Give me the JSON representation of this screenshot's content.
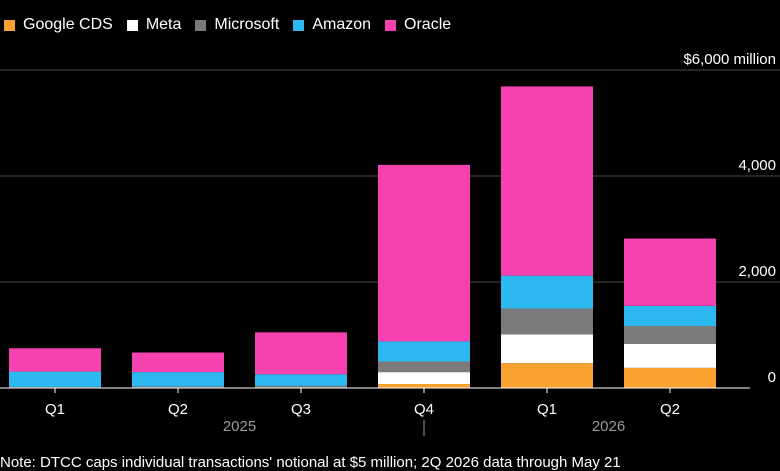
{
  "legend": {
    "items": [
      {
        "name": "Google CDS",
        "color": "#f9a12e"
      },
      {
        "name": "Meta",
        "color": "#ffffff"
      },
      {
        "name": "Microsoft",
        "color": "#7a7a7a"
      },
      {
        "name": "Amazon",
        "color": "#2db8f0"
      },
      {
        "name": "Oracle",
        "color": "#f542b0"
      }
    ]
  },
  "note": "Note: DTCC caps individual transactions' notional at $5 million; 2Q 2026 data through May 21",
  "chart_data": {
    "type": "bar",
    "stacked": true,
    "categories": [
      "Q1",
      "Q2",
      "Q3",
      "Q4",
      "Q1",
      "Q2"
    ],
    "year_groups": [
      {
        "label": "2025",
        "start": 0,
        "end": 3
      },
      {
        "label": "2026",
        "start": 4,
        "end": 5
      }
    ],
    "series": [
      {
        "name": "Google CDS",
        "color": "#f9a12e",
        "values": [
          0,
          0,
          0,
          75,
          470,
          380
        ]
      },
      {
        "name": "Meta",
        "color": "#ffffff",
        "values": [
          0,
          0,
          0,
          225,
          540,
          450
        ]
      },
      {
        "name": "Microsoft",
        "color": "#7a7a7a",
        "values": [
          20,
          30,
          40,
          200,
          490,
          340
        ]
      },
      {
        "name": "Amazon",
        "color": "#2db8f0",
        "values": [
          290,
          270,
          220,
          380,
          620,
          380
        ]
      },
      {
        "name": "Oracle",
        "color": "#f542b0",
        "values": [
          440,
          370,
          790,
          3330,
          3570,
          1270
        ]
      }
    ],
    "y_ticks": [
      {
        "value": 0,
        "label": "0"
      },
      {
        "value": 2000,
        "label": "2,000"
      },
      {
        "value": 4000,
        "label": "4,000"
      },
      {
        "value": 6000,
        "label": "$6,000 million"
      }
    ],
    "ylim": [
      0,
      6000
    ],
    "grid": true,
    "legend_position": "top-left"
  }
}
